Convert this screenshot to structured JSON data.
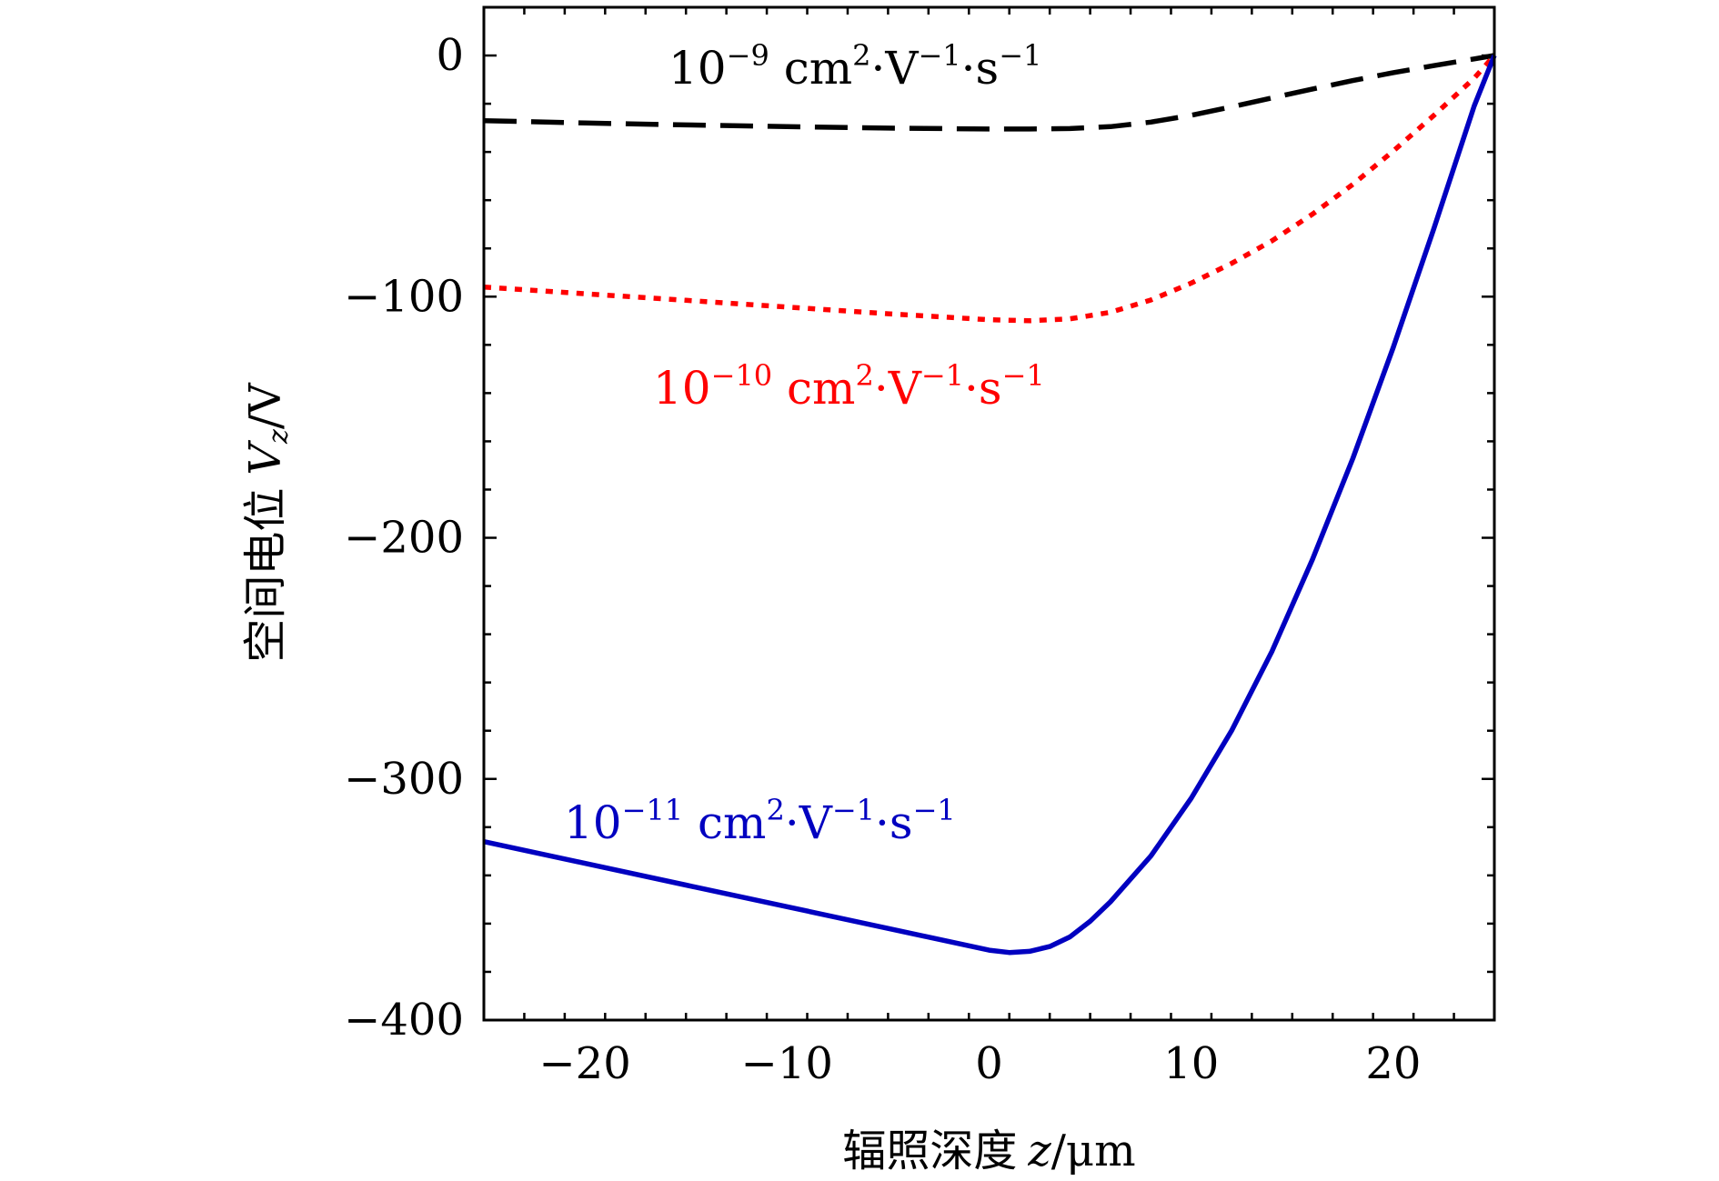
{
  "chart_data": {
    "type": "line",
    "xlabel": "辐照深度 z/μm",
    "ylabel": "空间电位 Vz/V",
    "xlim": [
      -25,
      25
    ],
    "ylim": [
      -400,
      20
    ],
    "xticks": [
      -20,
      -10,
      0,
      10,
      20
    ],
    "xtick_labels": [
      "−20",
      "−10",
      "0",
      "10",
      "20"
    ],
    "yticks": [
      0,
      -100,
      -200,
      -300,
      -400
    ],
    "ytick_labels": [
      "0",
      "−100",
      "−200",
      "−300",
      "−400"
    ],
    "grid": false,
    "legend": "none",
    "series": [
      {
        "name": "10−9 cm2·V−1·s−1",
        "color": "#000000",
        "style": "dashed",
        "x": [
          -25,
          -20,
          -15,
          -10,
          -5,
          0,
          2,
          4,
          6,
          8,
          10,
          12,
          14,
          16,
          18,
          20,
          22,
          24,
          25
        ],
        "y": [
          -27,
          -28,
          -28.8,
          -29.5,
          -30.1,
          -30.5,
          -30.5,
          -30.3,
          -29.5,
          -27.6,
          -24.8,
          -21.3,
          -17.6,
          -13.9,
          -10.4,
          -7.1,
          -4.2,
          -1.4,
          0
        ]
      },
      {
        "name": "10−10 cm2·V−1·s−1",
        "color": "#ff0000",
        "style": "dotted",
        "x": [
          -25,
          -20,
          -15,
          -10,
          -5,
          0,
          2,
          4,
          6,
          8,
          10,
          12,
          14,
          16,
          18,
          20,
          22,
          24,
          25
        ],
        "y": [
          -96,
          -98.8,
          -101.5,
          -104.3,
          -107.1,
          -109.6,
          -110,
          -109.2,
          -106.5,
          -101.4,
          -94.4,
          -86.2,
          -76.8,
          -65.8,
          -53.4,
          -39.6,
          -24.9,
          -9.4,
          0
        ]
      },
      {
        "name": "10−11 cm2·V−1·s−1",
        "color": "#0000c0",
        "style": "solid",
        "x": [
          -25,
          -20,
          -15,
          -10,
          -5,
          0,
          1,
          2,
          3,
          4,
          5,
          6,
          8,
          10,
          12,
          14,
          16,
          18,
          20,
          22,
          24,
          25
        ],
        "y": [
          -326,
          -335,
          -344,
          -353,
          -362,
          -371,
          -372,
          -371.5,
          -369.5,
          -365.5,
          -359,
          -351,
          -332,
          -308,
          -280,
          -247,
          -209,
          -167,
          -121,
          -72,
          -21,
          0
        ]
      }
    ],
    "annotations": [
      {
        "text_base": "10",
        "exp": "−9",
        "unit_cm": " cm",
        "exp_cm": "2",
        "unit_v": "·V",
        "exp_v": "−1",
        "unit_s": "·s",
        "exp_s": "−1",
        "color": "#000000"
      },
      {
        "text_base": "10",
        "exp": "−10",
        "unit_cm": " cm",
        "exp_cm": "2",
        "unit_v": "·V",
        "exp_v": "−1",
        "unit_s": "·s",
        "exp_s": "−1",
        "color": "#ff0000"
      },
      {
        "text_base": "10",
        "exp": "−11",
        "unit_cm": " cm",
        "exp_cm": "2",
        "unit_v": "·V",
        "exp_v": "−1",
        "unit_s": "·s",
        "exp_s": "−1",
        "color": "#0000c0"
      }
    ],
    "axis_label_parts": {
      "x_cn": "辐照深度",
      "x_var": "z",
      "x_unit": "/μm",
      "y_cn": "空间电位",
      "y_var": "V",
      "y_sub": "z",
      "y_unit": "/V"
    }
  }
}
